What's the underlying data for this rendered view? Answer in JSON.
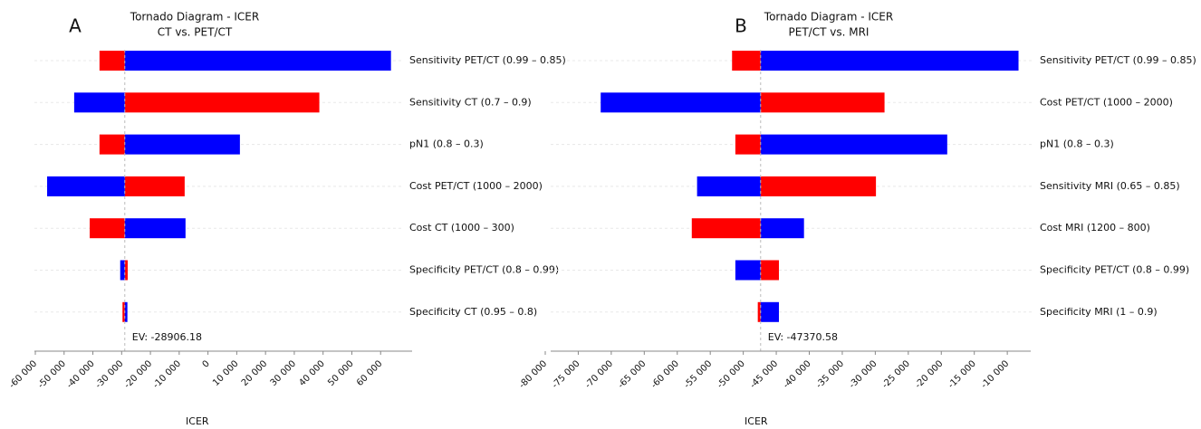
{
  "chart_data": [
    {
      "type": "tornado",
      "panel": "A",
      "title": "Tornado Diagram - ICER",
      "subtitle": "CT vs. PET/CT",
      "xlabel": "ICER",
      "ev": -28906.18,
      "ev_label": "EV: -28906.18",
      "categories": [
        "Sensitivity PET/CT (0.99 – 0.85)",
        "Sensitivity CT (0.7 – 0.9)",
        "pN1 (0.8 – 0.3)",
        "Cost PET/CT (1000 – 2000)",
        "Cost CT (1000 – 300)",
        "Specificity PET/CT (0.8 – 0.99)",
        "Specificity CT (0.95 – 0.8)"
      ],
      "series": [
        {
          "color": "#ff0000",
          "values": [
            -37700,
            38700,
            -37700,
            -8100,
            -41100,
            -27900,
            -29700
          ]
        },
        {
          "color": "#0000ff",
          "values": [
            63600,
            -46500,
            11100,
            -55900,
            -7800,
            -30500,
            -28000
          ]
        }
      ],
      "xlim": [
        -60000,
        70000
      ],
      "xticks": [
        {
          "value": -60000,
          "label": "-60 000"
        },
        {
          "value": -50000,
          "label": "-50 000"
        },
        {
          "value": -40000,
          "label": "-40 000"
        },
        {
          "value": -30000,
          "label": "-30 000"
        },
        {
          "value": -20000,
          "label": "-20 000"
        },
        {
          "value": -10000,
          "label": "-10 000"
        },
        0,
        {
          "value": 10000,
          "label": "10 000"
        },
        {
          "value": 20000,
          "label": "20 000"
        },
        {
          "value": 30000,
          "label": "30 000"
        },
        {
          "value": 40000,
          "label": "40 000"
        },
        {
          "value": 50000,
          "label": "50 000"
        },
        {
          "value": 60000,
          "label": "60 000"
        }
      ]
    },
    {
      "type": "tornado",
      "panel": "B",
      "title": "Tornado Diagram - ICER",
      "subtitle": "PET/CT vs. MRI",
      "xlabel": "ICER",
      "ev": -47370.58,
      "ev_label": "EV: -47370.58",
      "categories": [
        "Sensitivity PET/CT (0.99 – 0.85)",
        "Cost PET/CT (1000 – 2000)",
        "pN1 (0.8 – 0.3)",
        "Sensitivity MRI (0.65 – 0.85)",
        "Cost MRI (1200 – 800)",
        "Specificity PET/CT (0.8 – 0.99)",
        "Specificity MRI (1 – 0.9)"
      ],
      "series": [
        {
          "color": "#ff0000",
          "values": [
            -51700,
            -28600,
            -51200,
            -29900,
            -57800,
            -44600,
            -47800
          ]
        },
        {
          "color": "#0000ff",
          "values": [
            -8300,
            -71600,
            -19100,
            -57000,
            -40800,
            -51200,
            -44600
          ]
        }
      ],
      "xlim": [
        -80000,
        -7000
      ],
      "xticks": [
        {
          "value": -80000,
          "label": "-80 000"
        },
        {
          "value": -75000,
          "label": "-75 000"
        },
        {
          "value": -70000,
          "label": "-70 000"
        },
        {
          "value": -65000,
          "label": "-65 000"
        },
        {
          "value": -60000,
          "label": "-60 000"
        },
        {
          "value": -55000,
          "label": "-55 000"
        },
        {
          "value": -50000,
          "label": "-50 000"
        },
        {
          "value": -45000,
          "label": "-45 000"
        },
        {
          "value": -40000,
          "label": "-40 000"
        },
        {
          "value": -35000,
          "label": "-35 000"
        },
        {
          "value": -30000,
          "label": "-30 000"
        },
        {
          "value": -25000,
          "label": "-25 000"
        },
        {
          "value": -20000,
          "label": "-20 000"
        },
        {
          "value": -15000,
          "label": "-15 000"
        },
        {
          "value": -10000,
          "label": "-10 000"
        }
      ]
    }
  ]
}
